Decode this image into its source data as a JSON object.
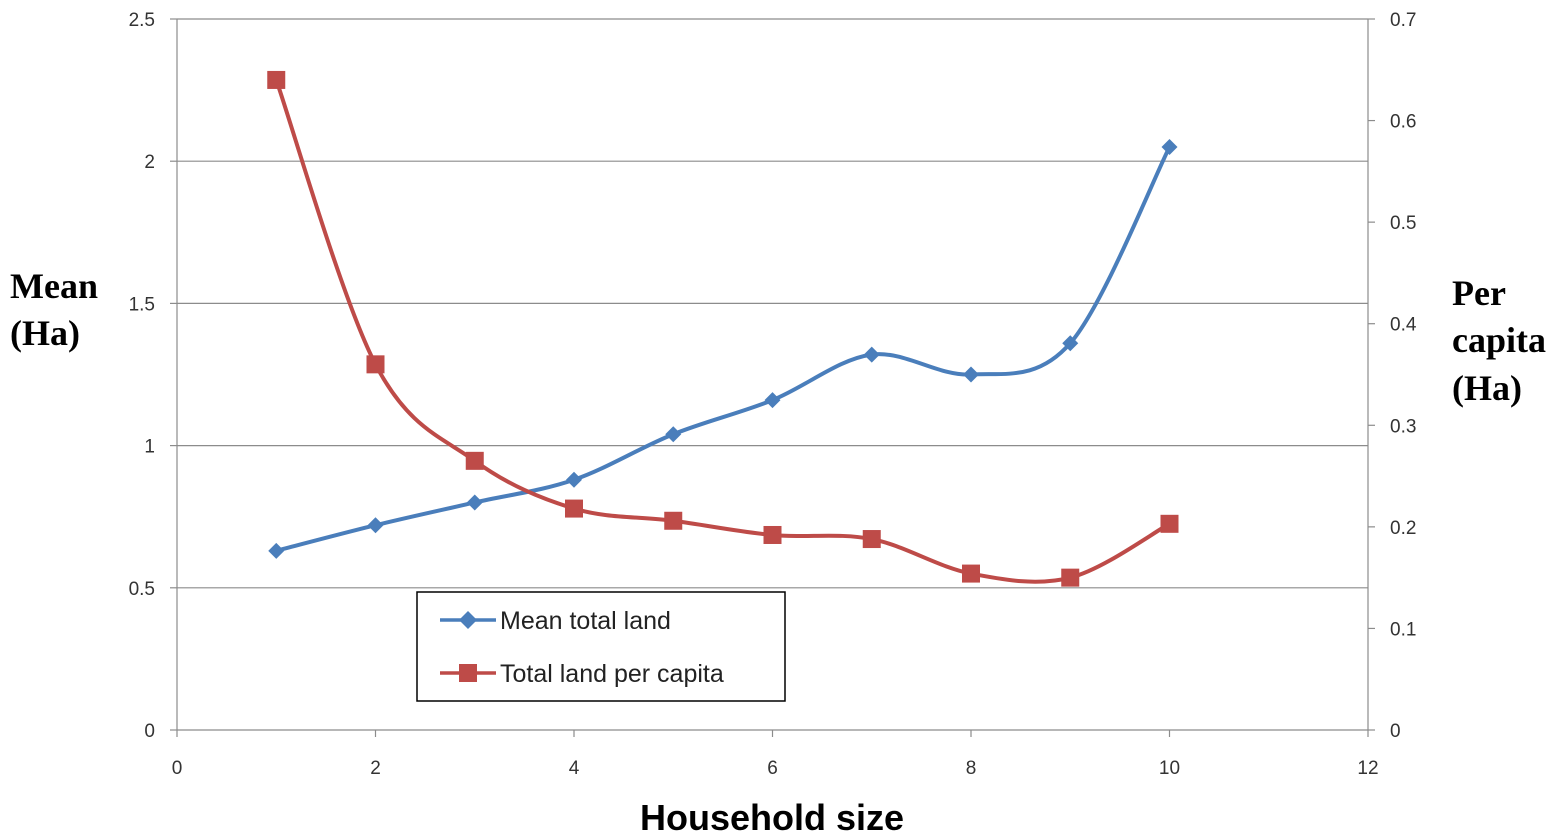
{
  "chart_data": {
    "type": "line",
    "xlabel": "Household size",
    "ylabel_left": [
      "Mean",
      "(Ha)"
    ],
    "ylabel_right": [
      "Per",
      "capita",
      "(Ha)"
    ],
    "xlim": [
      0,
      12
    ],
    "x_ticks": [
      0,
      2,
      4,
      6,
      8,
      10,
      12
    ],
    "ylim_left": [
      0,
      2.5
    ],
    "y_ticks_left": [
      "0",
      "0.5",
      "1",
      "1.5",
      "2",
      "2.5"
    ],
    "ylim_right": [
      0,
      0.7
    ],
    "y_ticks_right": [
      "0",
      "0.1",
      "0.2",
      "0.3",
      "0.4",
      "0.5",
      "0.6",
      "0.7"
    ],
    "grid": true,
    "legend_position": "bottom-left",
    "series": [
      {
        "name": "Mean total land",
        "axis": "left",
        "marker": "diamond",
        "color": "#4a7ebb",
        "x": [
          1,
          2,
          3,
          4,
          5,
          6,
          7,
          8,
          9,
          10
        ],
        "values": [
          0.63,
          0.72,
          0.8,
          0.88,
          1.04,
          1.16,
          1.32,
          1.25,
          1.36,
          2.05
        ]
      },
      {
        "name": "Total land per capita",
        "axis": "right",
        "marker": "square",
        "color": "#be4b48",
        "x": [
          1,
          2,
          3,
          4,
          5,
          6,
          7,
          8,
          9,
          10
        ],
        "values": [
          0.64,
          0.36,
          0.265,
          0.218,
          0.206,
          0.192,
          0.188,
          0.154,
          0.15,
          0.203
        ]
      }
    ]
  }
}
